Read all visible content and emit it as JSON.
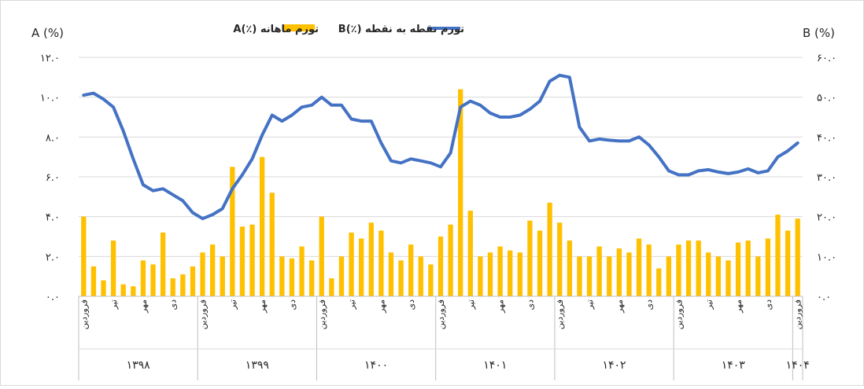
{
  "chart_data": {
    "type": "bar",
    "title": "",
    "left_axis": {
      "label": "A (%)",
      "ylim": [
        0,
        12
      ],
      "ticks": [
        "۰.۰",
        "۲.۰",
        "۴.۰",
        "۶.۰",
        "۸.۰",
        "۱۰.۰",
        "۱۲.۰"
      ]
    },
    "right_axis": {
      "label": "B (%)",
      "ylim": [
        0,
        60
      ],
      "ticks": [
        "۰.۰",
        "۱۰.۰",
        "۲۰.۰",
        "۳۰.۰",
        "۴۰.۰",
        "۵۰.۰",
        "۶۰.۰"
      ]
    },
    "grid": true,
    "legend_position": "top",
    "series": [
      {
        "name": "تورم ماهانه (٪)A",
        "type": "bar",
        "axis": "left",
        "color": "#FFC000",
        "values": [
          4.0,
          1.5,
          0.8,
          2.8,
          0.6,
          0.5,
          1.8,
          1.6,
          3.2,
          0.9,
          1.1,
          1.5,
          2.2,
          2.6,
          2.0,
          6.5,
          3.5,
          3.6,
          7.0,
          5.2,
          2.0,
          1.9,
          2.5,
          1.8,
          4.0,
          0.9,
          2.0,
          3.2,
          2.9,
          3.7,
          3.3,
          2.2,
          1.8,
          2.6,
          2.0,
          1.6,
          3.0,
          3.6,
          10.4,
          4.3,
          2.0,
          2.2,
          2.5,
          2.3,
          2.2,
          3.8,
          3.3,
          4.7,
          3.7,
          2.8,
          2.0,
          2.0,
          2.5,
          2.0,
          2.4,
          2.2,
          2.9,
          2.6,
          1.4,
          2.0,
          2.6,
          2.8,
          2.8,
          2.2,
          2.0,
          1.8,
          2.7,
          2.8,
          2.0,
          2.9,
          4.1,
          3.3,
          3.9
        ]
      },
      {
        "name": "تورم نقطه به نقطه (٪)B",
        "type": "line",
        "axis": "right",
        "color": "#4472C4",
        "values": [
          50.5,
          51.0,
          49.5,
          47.5,
          41.5,
          34.5,
          28.0,
          26.5,
          27.0,
          25.5,
          24.0,
          21.0,
          19.5,
          20.5,
          22.0,
          27.0,
          30.5,
          34.5,
          40.5,
          45.5,
          44.0,
          45.5,
          47.5,
          48.0,
          50.0,
          48.0,
          48.0,
          44.5,
          44.0,
          44.0,
          38.5,
          34.0,
          33.5,
          34.5,
          34.0,
          33.5,
          32.5,
          36.0,
          47.5,
          49.0,
          48.0,
          46.0,
          45.0,
          45.0,
          45.5,
          47.0,
          49.0,
          54.0,
          55.5,
          55.0,
          42.5,
          39.0,
          39.5,
          39.2,
          39.0,
          39.0,
          40.0,
          38.0,
          35.0,
          31.5,
          30.5,
          30.5,
          31.5,
          31.8,
          31.2,
          30.8,
          31.2,
          32.0,
          31.0,
          31.5,
          35.0,
          36.5,
          38.5
        ]
      }
    ],
    "x_tick_labels": [
      {
        "label": "فروردین",
        "index": 0
      },
      {
        "label": "تیر",
        "index": 3
      },
      {
        "label": "مهر",
        "index": 6
      },
      {
        "label": "دی",
        "index": 9
      },
      {
        "label": "فروردین",
        "index": 12
      },
      {
        "label": "تیر",
        "index": 15
      },
      {
        "label": "مهر",
        "index": 18
      },
      {
        "label": "دی",
        "index": 21
      },
      {
        "label": "فروردین",
        "index": 24
      },
      {
        "label": "تیر",
        "index": 27
      },
      {
        "label": "مهر",
        "index": 30
      },
      {
        "label": "دی",
        "index": 33
      },
      {
        "label": "فروردین",
        "index": 36
      },
      {
        "label": "تیر",
        "index": 39
      },
      {
        "label": "مهر",
        "index": 42
      },
      {
        "label": "دی",
        "index": 45
      },
      {
        "label": "فروردین",
        "index": 48
      },
      {
        "label": "تیر",
        "index": 51
      },
      {
        "label": "مهر",
        "index": 54
      },
      {
        "label": "دی",
        "index": 57
      },
      {
        "label": "فروردین",
        "index": 60
      },
      {
        "label": "تیر",
        "index": 63
      },
      {
        "label": "مهر",
        "index": 66
      },
      {
        "label": "دی",
        "index": 69
      },
      {
        "label": "فروردین",
        "index": 72
      }
    ],
    "year_groups": [
      {
        "label": "۱۳۹۸",
        "start": 0,
        "end": 11
      },
      {
        "label": "۱۳۹۹",
        "start": 12,
        "end": 23
      },
      {
        "label": "۱۴۰۰",
        "start": 24,
        "end": 35
      },
      {
        "label": "۱۴۰۱",
        "start": 36,
        "end": 47
      },
      {
        "label": "۱۴۰۲",
        "start": 48,
        "end": 59
      },
      {
        "label": "۱۴۰۳",
        "start": 60,
        "end": 71
      },
      {
        "label": "۱۴۰۴",
        "start": 72,
        "end": 72
      }
    ]
  }
}
